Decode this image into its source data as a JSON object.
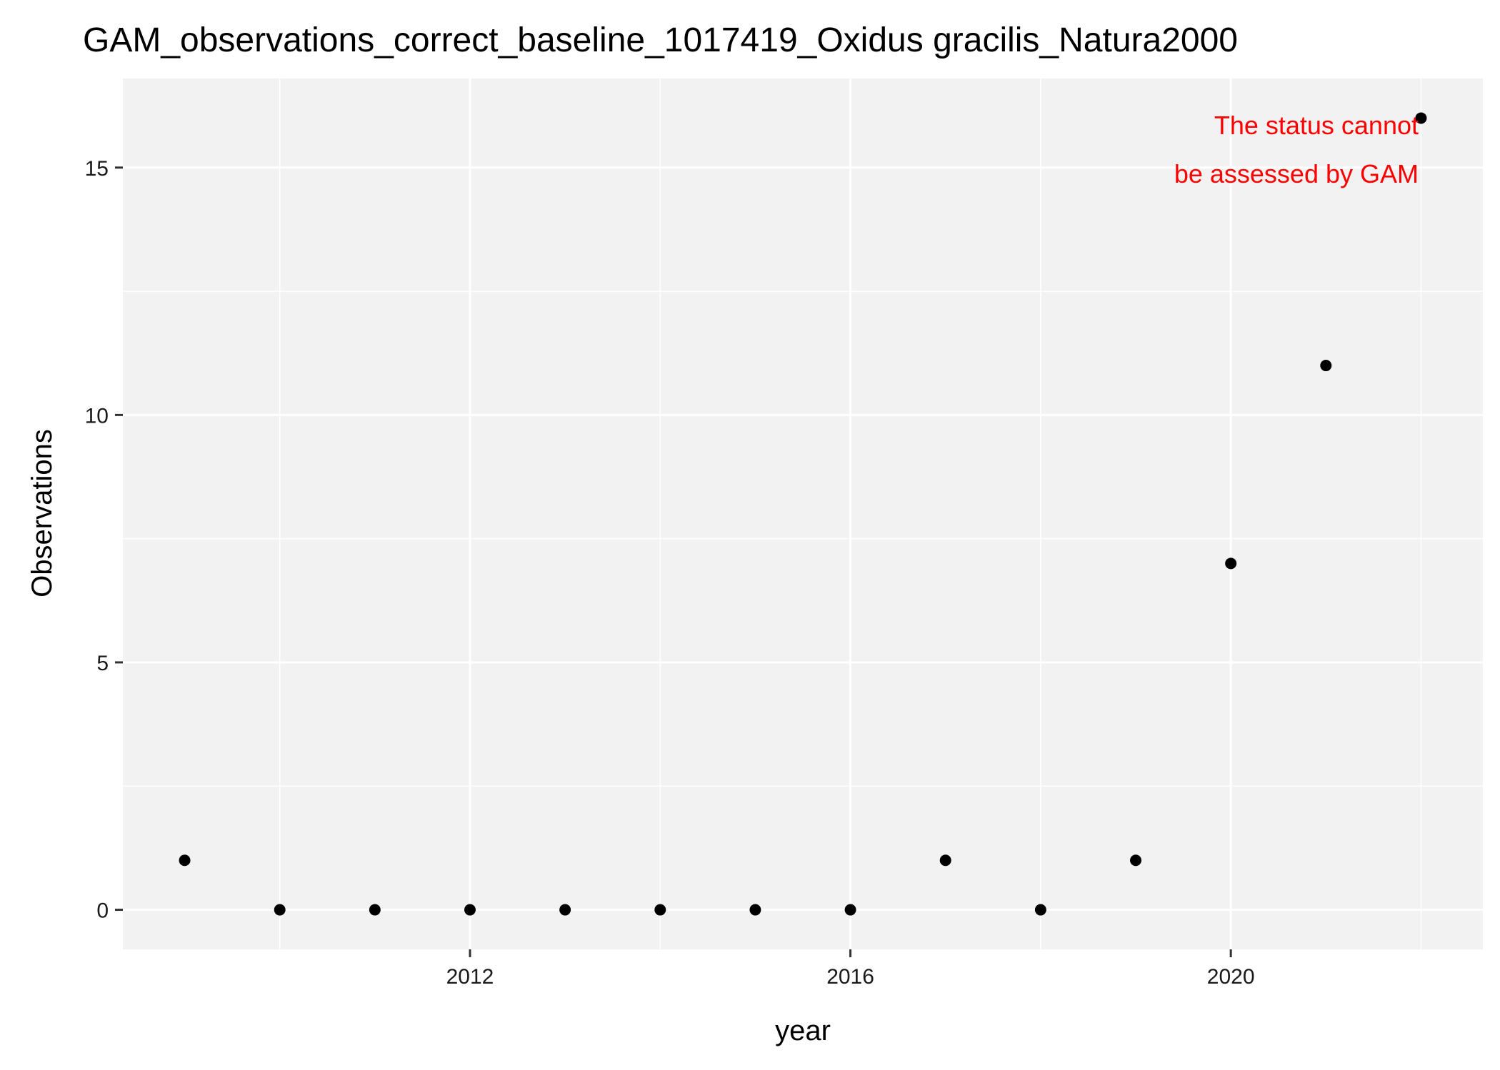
{
  "chart_data": {
    "type": "scatter",
    "title": "GAM_observations_correct_baseline_1017419_Oxidus gracilis_Natura2000",
    "xlabel": "year",
    "ylabel": "Observations",
    "xlim": [
      2008.35,
      2022.65
    ],
    "ylim": [
      -0.8,
      16.8
    ],
    "x_ticks": [
      2012,
      2016,
      2020
    ],
    "x_tick_labels": [
      "2012",
      "2016",
      "2020"
    ],
    "x_minor_ticks": [
      2010,
      2014,
      2018,
      2022
    ],
    "y_ticks": [
      0,
      5,
      10,
      15
    ],
    "y_tick_labels": [
      "0",
      "5",
      "10",
      "15"
    ],
    "y_minor_ticks": [
      2.5,
      7.5,
      12.5
    ],
    "grid": true,
    "panel_color": "#f2f2f2",
    "grid_color": "#ffffff",
    "point_color": "#000000",
    "points": [
      {
        "x": 2009,
        "y": 1
      },
      {
        "x": 2010,
        "y": 0
      },
      {
        "x": 2011,
        "y": 0
      },
      {
        "x": 2012,
        "y": 0
      },
      {
        "x": 2013,
        "y": 0
      },
      {
        "x": 2014,
        "y": 0
      },
      {
        "x": 2015,
        "y": 0
      },
      {
        "x": 2016,
        "y": 0
      },
      {
        "x": 2017,
        "y": 1
      },
      {
        "x": 2018,
        "y": 0
      },
      {
        "x": 2019,
        "y": 1
      },
      {
        "x": 2020,
        "y": 7
      },
      {
        "x": 2021,
        "y": 11
      },
      {
        "x": 2022,
        "y": 16
      }
    ],
    "annotation": {
      "lines": [
        "The status cannot",
        "be assessed by GAM"
      ],
      "color": "#ff0000"
    }
  }
}
